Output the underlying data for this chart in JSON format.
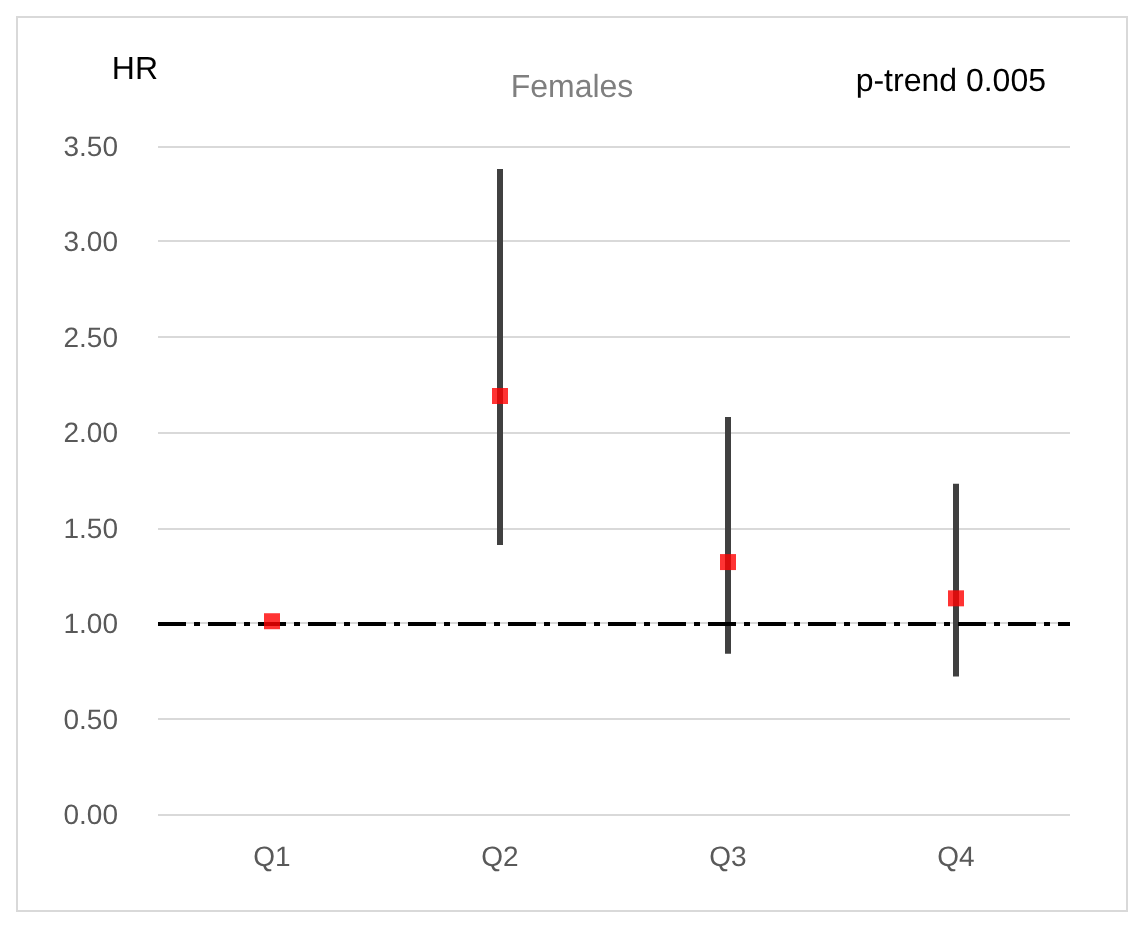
{
  "chart_data": {
    "type": "scatter",
    "title": "Females",
    "ylabel": "HR",
    "annotations": [
      "p-trend 0.005"
    ],
    "categories": [
      "Q1",
      "Q2",
      "Q3",
      "Q4"
    ],
    "series": [
      {
        "color": "#ff0000",
        "values": [
          1.01,
          2.19,
          1.32,
          1.13
        ],
        "errors": [
          null,
          [
            1.41,
            3.38
          ],
          [
            0.84,
            2.08
          ],
          [
            0.72,
            1.73
          ]
        ]
      }
    ],
    "ylim": [
      0,
      3.5
    ],
    "yticks": [
      {
        "value": 0,
        "label": "0.00"
      },
      {
        "value": 0.5,
        "label": "0.50"
      },
      {
        "value": 1,
        "label": "1.00"
      },
      {
        "value": 1.5,
        "label": "1.50"
      },
      {
        "value": 2,
        "label": "2.00"
      },
      {
        "value": 2.5,
        "label": "2.50"
      },
      {
        "value": 3,
        "label": "3.00"
      },
      {
        "value": 3.5,
        "label": "3.50"
      }
    ],
    "ref_lines": [
      {
        "axis": "y",
        "value": 1,
        "color": "#000000",
        "line_style": "dashed"
      }
    ],
    "grid": "y",
    "marker": "square"
  }
}
